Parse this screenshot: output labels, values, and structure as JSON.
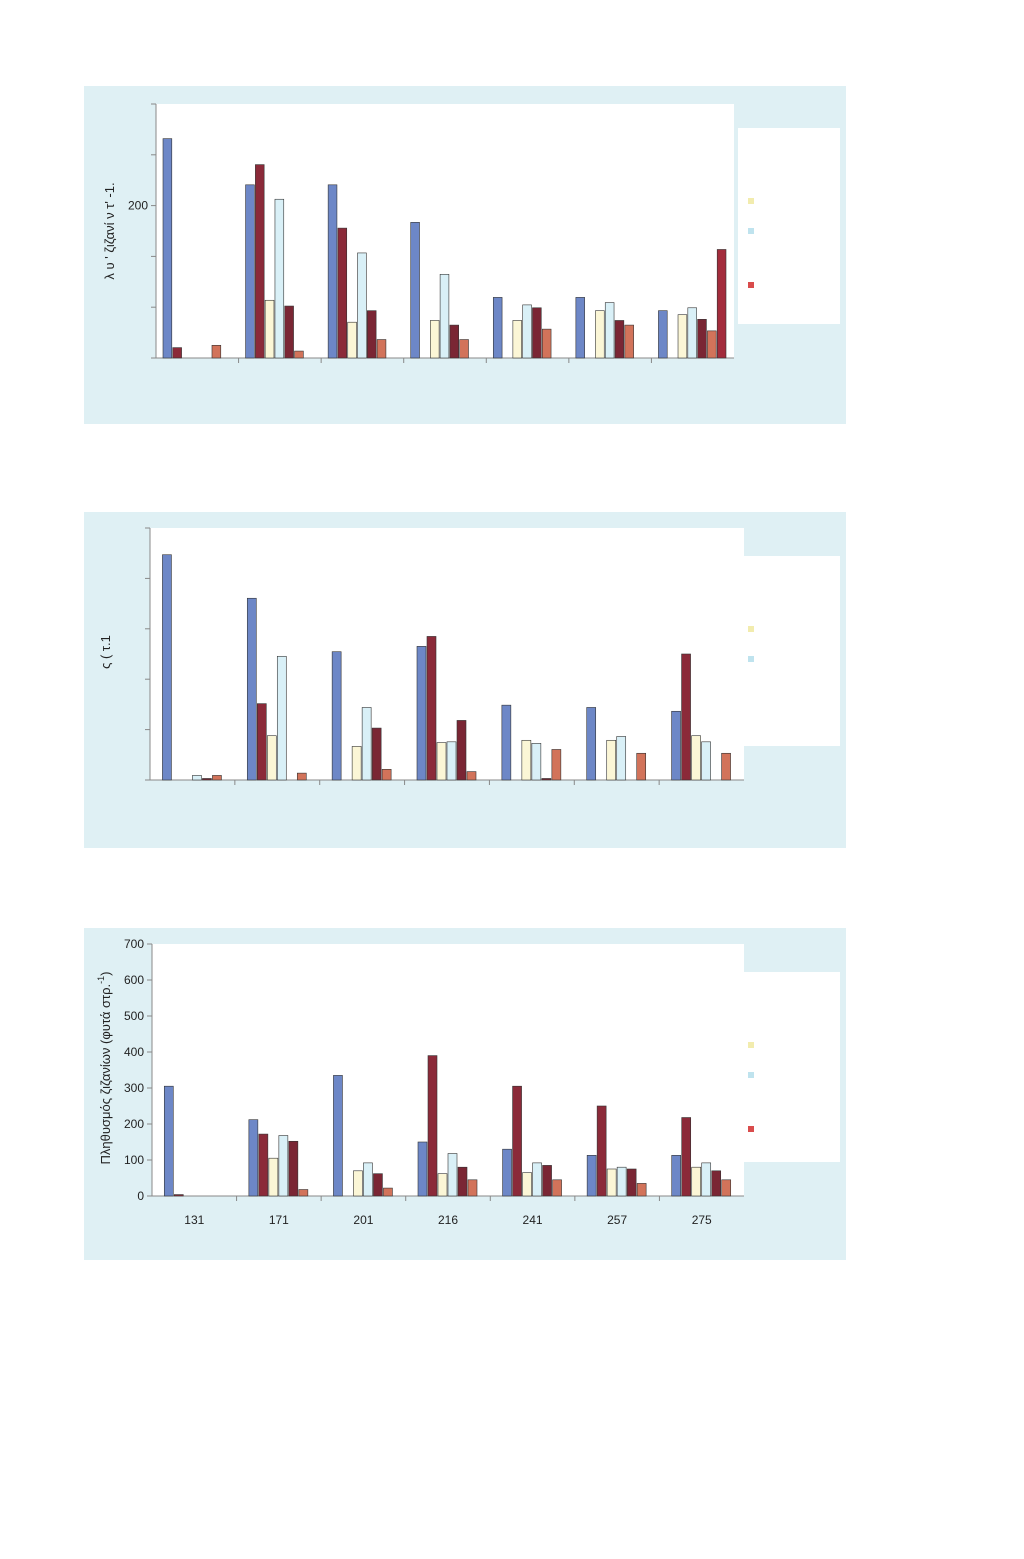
{
  "chart_data": [
    {
      "type": "bar",
      "ylabel": "λ υ ' ζιζανί ν τ' -1.",
      "ytick_labels": [
        "",
        "",
        "200",
        "",
        ""
      ],
      "ylim": [
        0,
        440
      ],
      "categories": [
        "",
        "",
        "",
        "",
        "",
        "",
        ""
      ],
      "series": [
        {
          "color": "#6d87c7",
          "values": [
            380,
            300,
            300,
            235,
            105,
            105,
            82
          ]
        },
        {
          "color": "#8b2a39",
          "values": [
            18,
            335,
            225,
            0,
            0,
            0,
            0
          ]
        },
        {
          "color": "#fbf6d6",
          "values": [
            0,
            100,
            62,
            65,
            65,
            82,
            75
          ]
        },
        {
          "color": "#d9f0f7",
          "values": [
            0,
            275,
            182,
            145,
            92,
            96,
            87
          ]
        },
        {
          "color": "#7a2634",
          "values": [
            0,
            90,
            82,
            57,
            87,
            65,
            67
          ]
        },
        {
          "color": "#d2735a",
          "values": [
            22,
            12,
            32,
            32,
            50,
            57,
            47
          ]
        },
        {
          "color": "#a32c3c",
          "values": [
            0,
            0,
            0,
            0,
            0,
            0,
            188
          ]
        }
      ]
    },
    {
      "type": "bar",
      "ylabel": "ς ( τ.1",
      "ytick_labels": [],
      "ylim": [
        0,
        330
      ],
      "categories": [
        "",
        "",
        "",
        "",
        "",
        "",
        ""
      ],
      "series": [
        {
          "color": "#6d87c7",
          "values": [
            295,
            238,
            168,
            175,
            98,
            95,
            90
          ]
        },
        {
          "color": "#8b2a39",
          "values": [
            0,
            100,
            0,
            188,
            0,
            0,
            165
          ]
        },
        {
          "color": "#fbf6d6",
          "values": [
            0,
            58,
            44,
            49,
            52,
            52,
            58
          ]
        },
        {
          "color": "#d9f0f7",
          "values": [
            6,
            162,
            95,
            50,
            48,
            57,
            50
          ]
        },
        {
          "color": "#7a2634",
          "values": [
            2,
            0,
            68,
            78,
            2,
            0,
            0
          ]
        },
        {
          "color": "#d2735a",
          "values": [
            6,
            9,
            14,
            11,
            40,
            35,
            35
          ]
        }
      ]
    },
    {
      "type": "bar",
      "ylabel": "Πληθυσμός ζιζανίων (φυτά στρ.",
      "ylabel_sup": "-1",
      "ylabel_end": ")",
      "ylim": [
        0,
        700
      ],
      "yticks": [
        0,
        100,
        200,
        300,
        400,
        500,
        600,
        700
      ],
      "categories": [
        "131",
        "171",
        "201",
        "216",
        "241",
        "257",
        "275"
      ],
      "series": [
        {
          "color": "#6d87c7",
          "values": [
            305,
            212,
            335,
            150,
            130,
            113,
            113
          ]
        },
        {
          "color": "#8b2a39",
          "values": [
            4,
            172,
            0,
            390,
            305,
            250,
            218
          ]
        },
        {
          "color": "#fbf6d6",
          "values": [
            0,
            105,
            70,
            62,
            65,
            75,
            80
          ]
        },
        {
          "color": "#d9f0f7",
          "values": [
            0,
            168,
            92,
            118,
            92,
            80,
            92
          ]
        },
        {
          "color": "#7a2634",
          "values": [
            0,
            152,
            62,
            80,
            85,
            75,
            70
          ]
        },
        {
          "color": "#d2735a",
          "values": [
            0,
            18,
            22,
            45,
            45,
            35,
            45
          ]
        }
      ]
    }
  ],
  "legends": [
    {
      "marks": [
        {
          "color": "#f2ecae"
        },
        {
          "color": "#bfe3ee"
        },
        {
          "color": "#d94c4c"
        }
      ]
    },
    {
      "marks": [
        {
          "color": "#f2ecae"
        },
        {
          "color": "#bfe3ee"
        }
      ]
    },
    {
      "marks": [
        {
          "color": "#f2ecae"
        },
        {
          "color": "#bfe3ee"
        },
        {
          "color": "#d94c4c"
        }
      ]
    }
  ]
}
